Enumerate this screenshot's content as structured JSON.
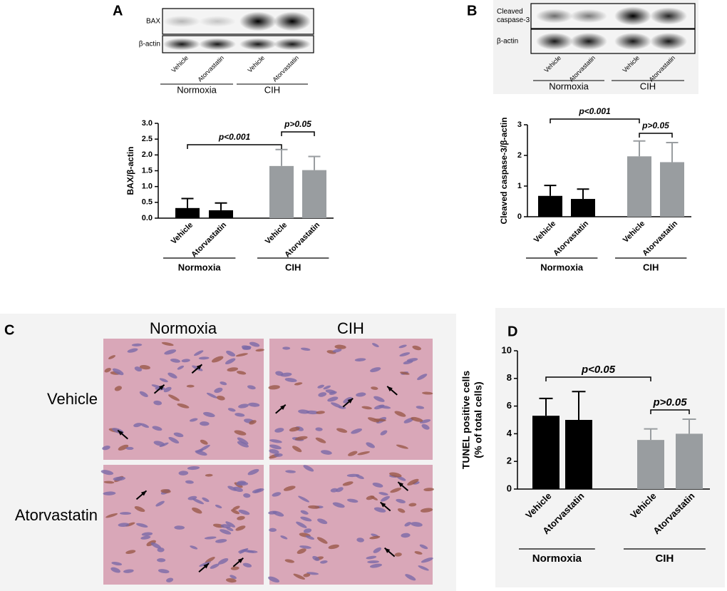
{
  "labels": [
    "A",
    "B",
    "C",
    "D"
  ],
  "blots": [
    {
      "rows": [
        [
          "BAX"
        ],
        [
          "β-actin"
        ]
      ],
      "lanes": [
        "Vehicle",
        "Atorvastatin",
        "Vehicle",
        "Atorvastatin"
      ],
      "groups": [
        "Normoxia",
        "CIH"
      ]
    },
    {
      "rows": [
        [
          "Cleaved",
          "caspase-3"
        ],
        [
          "β-actin"
        ]
      ],
      "lanes": [
        "Vehicle",
        "Atorvastatin",
        "Vehicle",
        "Atorvastatin"
      ],
      "groups": [
        "Normoxia",
        "CIH"
      ]
    }
  ],
  "histology": {
    "columns": [
      "Normoxia",
      "CIH"
    ],
    "rows": [
      "Vehicle",
      "Atorvastatin"
    ]
  },
  "chart_data": [
    {
      "type": "bar",
      "ylabel": [
        "BAX/β-actin"
      ],
      "categories": [
        "Vehicle",
        "Atorvastatin",
        "Vehicle",
        "Atorvastatin"
      ],
      "groups": [
        "Normoxia",
        "CIH"
      ],
      "values": [
        0.32,
        0.25,
        1.65,
        1.52
      ],
      "errors": [
        0.3,
        0.23,
        0.52,
        0.43
      ],
      "colors": [
        "#000000",
        "#000000",
        "#999da0",
        "#999da0"
      ],
      "ylim": [
        0,
        3.0
      ],
      "yticks": [
        {
          "value": 0,
          "label": "0.0"
        },
        {
          "value": 0.5,
          "label": "0.5"
        },
        {
          "value": 1.0,
          "label": "1.0"
        },
        {
          "value": 1.5,
          "label": "1.5"
        },
        {
          "value": 2.0,
          "label": "2.0"
        },
        {
          "value": 2.5,
          "label": "2.5"
        },
        {
          "value": 3.0,
          "label": "3.0"
        }
      ],
      "annotations": [
        {
          "text": "p<0.001",
          "between": [
            0,
            2
          ]
        },
        {
          "text": "p>0.05",
          "between": [
            2,
            3
          ]
        }
      ]
    },
    {
      "type": "bar",
      "ylabel": [
        "Cleaved caspase-3/β-actin"
      ],
      "categories": [
        "Vehicle",
        "Atorvastatin",
        "Vehicle",
        "Atorvastatin"
      ],
      "groups": [
        "Normoxia",
        "CIH"
      ],
      "values": [
        0.68,
        0.58,
        1.97,
        1.78
      ],
      "errors": [
        0.34,
        0.32,
        0.5,
        0.64
      ],
      "colors": [
        "#000000",
        "#000000",
        "#999da0",
        "#999da0"
      ],
      "ylim": [
        0,
        3
      ],
      "yticks": [
        0,
        1,
        2,
        3
      ],
      "annotations": [
        {
          "text": "p<0.001",
          "between": [
            0,
            2
          ]
        },
        {
          "text": "p>0.05",
          "between": [
            2,
            3
          ]
        }
      ]
    },
    {
      "type": "bar",
      "ylabel": [
        "TUNEL positive cells",
        "(% of total cells)"
      ],
      "categories": [
        "Vehicle",
        "Atorvastatin",
        "Vehicle",
        "Atorvastatin"
      ],
      "groups": [
        "Normoxia",
        "CIH"
      ],
      "values": [
        5.3,
        5.0,
        3.55,
        4.0
      ],
      "errors": [
        1.25,
        2.05,
        0.8,
        1.05
      ],
      "colors": [
        "#000000",
        "#000000",
        "#999da0",
        "#999da0"
      ],
      "ylim": [
        0,
        10
      ],
      "yticks": [
        0,
        2,
        4,
        6,
        8,
        10
      ],
      "annotations": [
        {
          "text": "p<0.05",
          "between": [
            0,
            2
          ]
        },
        {
          "text": "p>0.05",
          "between": [
            2,
            3
          ]
        }
      ]
    }
  ]
}
